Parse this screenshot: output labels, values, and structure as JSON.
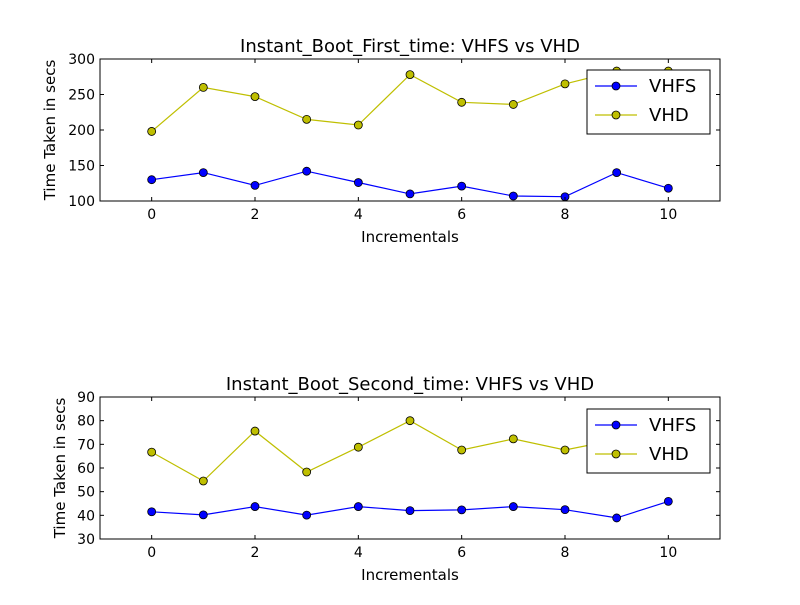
{
  "chart_data": [
    {
      "type": "line",
      "title": "Instant_Boot_First_time: VHFS vs VHD",
      "xlabel": "Incrementals",
      "ylabel": "Time Taken in secs",
      "xlim": [
        -1,
        11
      ],
      "ylim": [
        100,
        300
      ],
      "xticks": [
        0,
        2,
        4,
        6,
        8,
        10
      ],
      "yticks": [
        100,
        150,
        200,
        250,
        300
      ],
      "grid": false,
      "legend": "top-right",
      "x": [
        0,
        1,
        2,
        3,
        4,
        5,
        6,
        7,
        8,
        9,
        10
      ],
      "series": [
        {
          "name": "VHFS",
          "color": "#0000ff",
          "marker": "circle",
          "values": [
            130,
            140,
            122,
            142,
            126,
            110,
            121,
            107,
            106,
            140,
            118
          ]
        },
        {
          "name": "VHD",
          "color": "#bfbf00",
          "marker": "circle",
          "values": [
            198,
            260,
            247,
            215,
            207,
            278,
            239,
            236,
            265,
            283,
            283
          ]
        }
      ]
    },
    {
      "type": "line",
      "title": "Instant_Boot_Second_time: VHFS vs VHD",
      "xlabel": "Incrementals",
      "ylabel": "Time Taken in secs",
      "xlim": [
        -1,
        11
      ],
      "ylim": [
        30,
        90
      ],
      "xticks": [
        0,
        2,
        4,
        6,
        8,
        10
      ],
      "yticks": [
        30,
        40,
        50,
        60,
        70,
        80,
        90
      ],
      "grid": false,
      "legend": "top-right",
      "x": [
        0,
        1,
        2,
        3,
        4,
        5,
        6,
        7,
        8,
        9,
        10
      ],
      "series": [
        {
          "name": "VHFS",
          "color": "#0000ff",
          "marker": "circle",
          "values": [
            41.5,
            40.2,
            43.7,
            40.1,
            43.7,
            42.0,
            42.3,
            43.7,
            42.4,
            38.9,
            45.9
          ]
        },
        {
          "name": "VHD",
          "color": "#bfbf00",
          "marker": "circle",
          "values": [
            66.7,
            54.5,
            75.6,
            58.3,
            68.8,
            80.0,
            67.6,
            72.3,
            67.6,
            72.0,
            72.0
          ]
        }
      ]
    }
  ]
}
